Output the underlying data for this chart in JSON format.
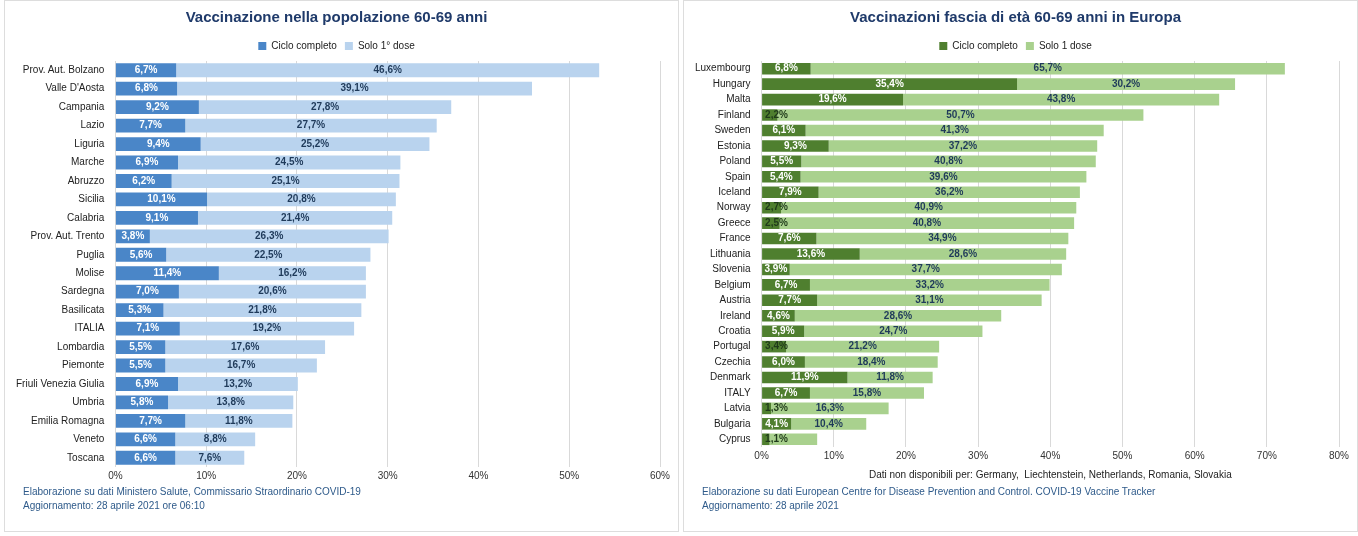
{
  "chart_data": [
    {
      "type": "bar",
      "orientation": "horizontal",
      "stacked": true,
      "title": "Vaccinazione nella popolazione 60-69 anni",
      "legend": "top",
      "grid": "x",
      "categories": [
        "Prov. Aut. Bolzano",
        "Valle D'Aosta",
        "Campania",
        "Lazio",
        "Liguria",
        "Marche",
        "Abruzzo",
        "Sicilia",
        "Calabria",
        "Prov. Aut. Trento",
        "Puglia",
        "Molise",
        "Sardegna",
        "Basilicata",
        "ITALIA",
        "Lombardia",
        "Piemonte",
        "Friuli Venezia Giulia",
        "Umbria",
        "Emilia Romagna",
        "Veneto",
        "Toscana"
      ],
      "series": [
        {
          "name": "Ciclo completo",
          "color": "#4a86c8",
          "values": [
            6.7,
            6.8,
            9.2,
            7.7,
            9.4,
            6.9,
            6.2,
            10.1,
            9.1,
            3.8,
            5.6,
            11.4,
            7.0,
            5.3,
            7.1,
            5.5,
            5.5,
            6.9,
            5.8,
            7.7,
            6.6,
            6.6
          ],
          "value_labels": [
            "6,7%",
            "6,8%",
            "9,2%",
            "7,7%",
            "9,4%",
            "6,9%",
            "6,2%",
            "10,1%",
            "9,1%",
            "3,8%",
            "5,6%",
            "11,4%",
            "7,0%",
            "5,3%",
            "7,1%",
            "5,5%",
            "5,5%",
            "6,9%",
            "5,8%",
            "7,7%",
            "6,6%",
            "6,6%"
          ]
        },
        {
          "name": "Solo 1° dose",
          "color": "#b9d3ee",
          "values": [
            46.6,
            39.1,
            27.8,
            27.7,
            25.2,
            24.5,
            25.1,
            20.8,
            21.4,
            26.3,
            22.5,
            16.2,
            20.6,
            21.8,
            19.2,
            17.6,
            16.7,
            13.2,
            13.8,
            11.8,
            8.8,
            7.6
          ],
          "value_labels": [
            "46,6%",
            "39,1%",
            "27,8%",
            "27,7%",
            "25,2%",
            "24,5%",
            "25,1%",
            "20,8%",
            "21,4%",
            "26,3%",
            "22,5%",
            "16,2%",
            "20,6%",
            "21,8%",
            "19,2%",
            "17,6%",
            "16,7%",
            "13,2%",
            "13,8%",
            "11,8%",
            "8,8%",
            "7,6%"
          ]
        }
      ],
      "xlim": [
        0,
        60
      ],
      "xticks": [
        {
          "value": 0,
          "label": "0%"
        },
        {
          "value": 10,
          "label": "10%"
        },
        {
          "value": 20,
          "label": "20%"
        },
        {
          "value": 30,
          "label": "30%"
        },
        {
          "value": 40,
          "label": "40%"
        },
        {
          "value": 50,
          "label": "50%"
        },
        {
          "value": 60,
          "label": "60%"
        }
      ],
      "annotations": [
        "Elaborazione su dati Ministero Salute, Commissario Straordinario COVID-19",
        "Aggiornamento:  28 aprile 2021 ore 06:10"
      ]
    },
    {
      "type": "bar",
      "orientation": "horizontal",
      "stacked": true,
      "title": "Vaccinazioni fascia di età 60-69 anni in Europa",
      "legend": "top",
      "grid": "x",
      "categories": [
        "Luxembourg",
        "Hungary",
        "Malta",
        "Finland",
        "Sweden",
        "Estonia",
        "Poland",
        "Spain",
        "Iceland",
        "Norway",
        "Greece",
        "France",
        "Lithuania",
        "Slovenia",
        "Belgium",
        "Austria",
        "Ireland",
        "Croatia",
        "Portugal",
        "Czechia",
        "Denmark",
        "ITALY",
        "Latvia",
        "Bulgaria",
        "Cyprus"
      ],
      "series": [
        {
          "name": "Ciclo completo",
          "color": "#4f7f2f",
          "values": [
            6.8,
            35.4,
            19.6,
            2.2,
            6.1,
            9.3,
            5.5,
            5.4,
            7.9,
            2.7,
            2.5,
            7.6,
            13.6,
            3.9,
            6.7,
            7.7,
            4.6,
            5.9,
            3.4,
            6.0,
            11.9,
            6.7,
            1.3,
            4.1,
            1.1
          ],
          "value_labels": [
            "6,8%",
            "35,4%",
            "19,6%",
            "2,2%",
            "6,1%",
            "9,3%",
            "5,5%",
            "5,4%",
            "7,9%",
            "2,7%",
            "2,5%",
            "7,6%",
            "13,6%",
            "3,9%",
            "6,7%",
            "7,7%",
            "4,6%",
            "5,9%",
            "3,4%",
            "6,0%",
            "11,9%",
            "6,7%",
            "1,3%",
            "4,1%",
            "1,1%"
          ]
        },
        {
          "name": "Solo 1 dose",
          "color": "#a9d18e",
          "values": [
            65.7,
            30.2,
            43.8,
            50.7,
            41.3,
            37.2,
            40.8,
            39.6,
            36.2,
            40.9,
            40.8,
            34.9,
            28.6,
            37.7,
            33.2,
            31.1,
            28.6,
            24.7,
            21.2,
            18.4,
            11.8,
            15.8,
            16.3,
            10.4,
            6.6
          ],
          "value_labels": [
            "65,7%",
            "30,2%",
            "43,8%",
            "50,7%",
            "41,3%",
            "37,2%",
            "40,8%",
            "39,6%",
            "36,2%",
            "40,9%",
            "40,8%",
            "34,9%",
            "28,6%",
            "37,7%",
            "33,2%",
            "31,1%",
            "28,6%",
            "24,7%",
            "21,2%",
            "18,4%",
            "11,8%",
            "15,8%",
            "16,3%",
            "10,4%",
            null
          ]
        }
      ],
      "xlim": [
        0,
        80
      ],
      "xticks": [
        {
          "value": 0,
          "label": "0%"
        },
        {
          "value": 10,
          "label": "10%"
        },
        {
          "value": 20,
          "label": "20%"
        },
        {
          "value": 30,
          "label": "30%"
        },
        {
          "value": 40,
          "label": "40%"
        },
        {
          "value": 50,
          "label": "50%"
        },
        {
          "value": 60,
          "label": "60%"
        },
        {
          "value": 70,
          "label": "70%"
        },
        {
          "value": 80,
          "label": "80%"
        }
      ],
      "xlabel": "Dati non disponibili per: Germany,  Liechtenstein, Netherlands, Romania, Slovakia",
      "annotations": [
        "Elaborazione su dati European Centre for Disease Prevention and Control. COVID-19 Vaccine Tracker",
        "Aggiornamento:  28 aprile 2021"
      ]
    }
  ]
}
